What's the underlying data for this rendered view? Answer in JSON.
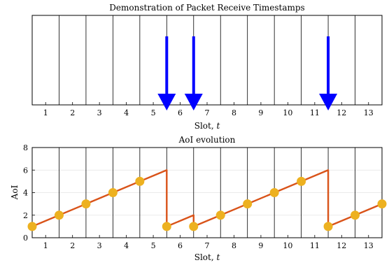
{
  "chart_data": [
    {
      "type": "timeline",
      "title": "Demonstration of Packet Receive Timestamps",
      "xlabel": "Slot, t",
      "xlabel_main": "Slot, ",
      "xlabel_var": "t",
      "x_ticks": [
        "1",
        "2",
        "3",
        "4",
        "5",
        "6",
        "7",
        "8",
        "9",
        "10",
        "11",
        "12",
        "13"
      ],
      "xlim": [
        0.5,
        13.5
      ],
      "slot_boundaries": [
        1,
        2,
        3,
        4,
        5,
        6,
        7,
        8,
        9,
        10,
        11,
        12,
        13
      ],
      "receive_timestamps": [
        5.5,
        6.5,
        11.5
      ],
      "arrow_color": "#0000ff"
    },
    {
      "type": "line",
      "title": "AoI evolution",
      "xlabel": "Slot, t",
      "xlabel_main": "Slot, ",
      "xlabel_var": "t",
      "ylabel": "AoI",
      "x_ticks": [
        "1",
        "2",
        "3",
        "4",
        "5",
        "6",
        "7",
        "8",
        "9",
        "10",
        "11",
        "12",
        "13"
      ],
      "y_ticks": [
        "0",
        "2",
        "4",
        "6",
        "8"
      ],
      "y_tick_values": [
        0,
        2,
        4,
        6,
        8
      ],
      "xlim": [
        0.5,
        13.5
      ],
      "ylim": [
        0,
        8
      ],
      "grid": "horizontal",
      "slot_boundaries": [
        1,
        2,
        3,
        4,
        5,
        6,
        7,
        8,
        9,
        10,
        11,
        12,
        13
      ],
      "series": [
        {
          "line": [
            [
              0.5,
              1
            ],
            [
              5.5,
              6
            ],
            [
              5.5,
              1
            ],
            [
              6.5,
              2
            ],
            [
              6.5,
              1
            ],
            [
              11.5,
              6
            ],
            [
              11.5,
              1
            ],
            [
              13.5,
              3
            ]
          ],
          "markers": [
            [
              0.5,
              1
            ],
            [
              1.5,
              2
            ],
            [
              2.5,
              3
            ],
            [
              3.5,
              4
            ],
            [
              4.5,
              5
            ],
            [
              5.5,
              1
            ],
            [
              6.5,
              1
            ],
            [
              7.5,
              2
            ],
            [
              8.5,
              3
            ],
            [
              9.5,
              4
            ],
            [
              10.5,
              5
            ],
            [
              11.5,
              1
            ],
            [
              12.5,
              2
            ],
            [
              13.5,
              3
            ]
          ],
          "line_color": "#d95319",
          "marker_color": "#edb120"
        }
      ]
    }
  ]
}
